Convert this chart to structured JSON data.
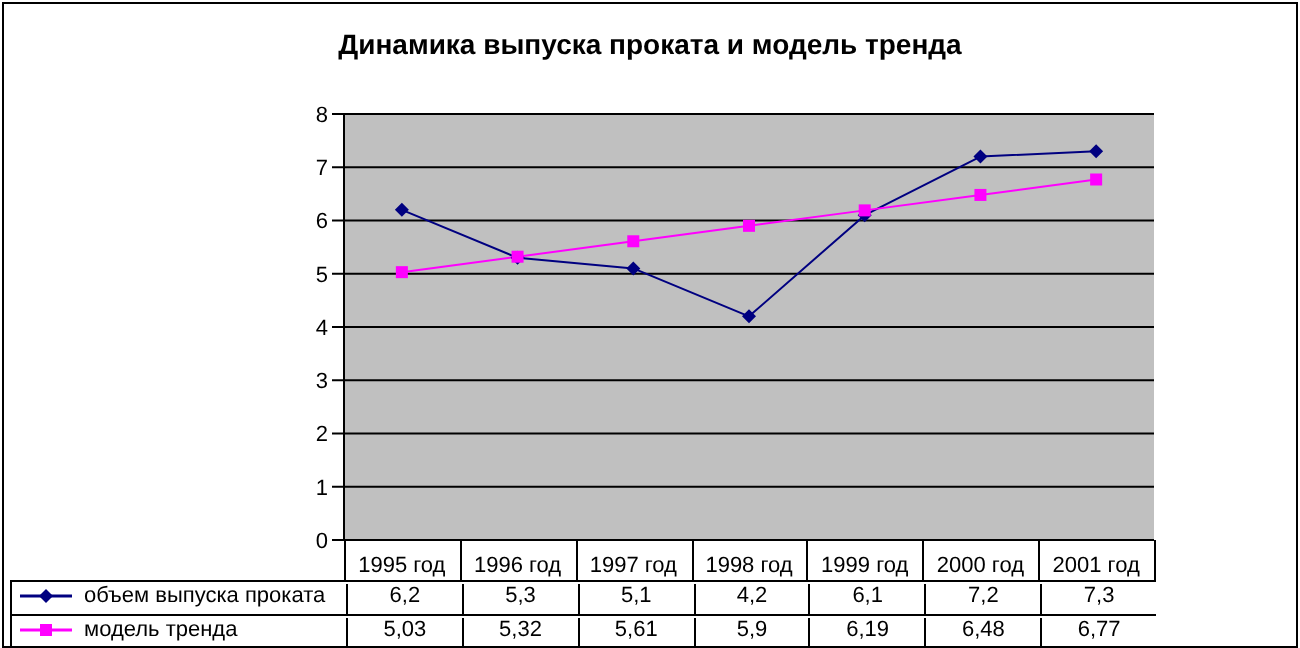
{
  "chart_data": {
    "type": "line",
    "title": "Динамика выпуска проката и модель тренда",
    "categories": [
      "1995 год",
      "1996 год",
      "1997 год",
      "1998 год",
      "1999 год",
      "2000 год",
      "2001 год"
    ],
    "series": [
      {
        "name": "объем выпуска проката",
        "color": "#000080",
        "marker": "diamond",
        "values": [
          6.2,
          5.3,
          5.1,
          4.2,
          6.1,
          7.2,
          7.3
        ],
        "value_labels": [
          "6,2",
          "5,3",
          "5,1",
          "4,2",
          "6,1",
          "7,2",
          "7,3"
        ]
      },
      {
        "name": "модель тренда",
        "color": "#ff00ff",
        "marker": "square",
        "values": [
          5.03,
          5.32,
          5.61,
          5.9,
          6.19,
          6.48,
          6.77
        ],
        "value_labels": [
          "5,03",
          "5,32",
          "5,61",
          "5,9",
          "6,19",
          "6,48",
          "6,77"
        ]
      }
    ],
    "ylim": [
      0,
      8
    ],
    "yticks": [
      0,
      1,
      2,
      3,
      4,
      5,
      6,
      7,
      8
    ],
    "grid": "y",
    "legend": "bottom"
  }
}
